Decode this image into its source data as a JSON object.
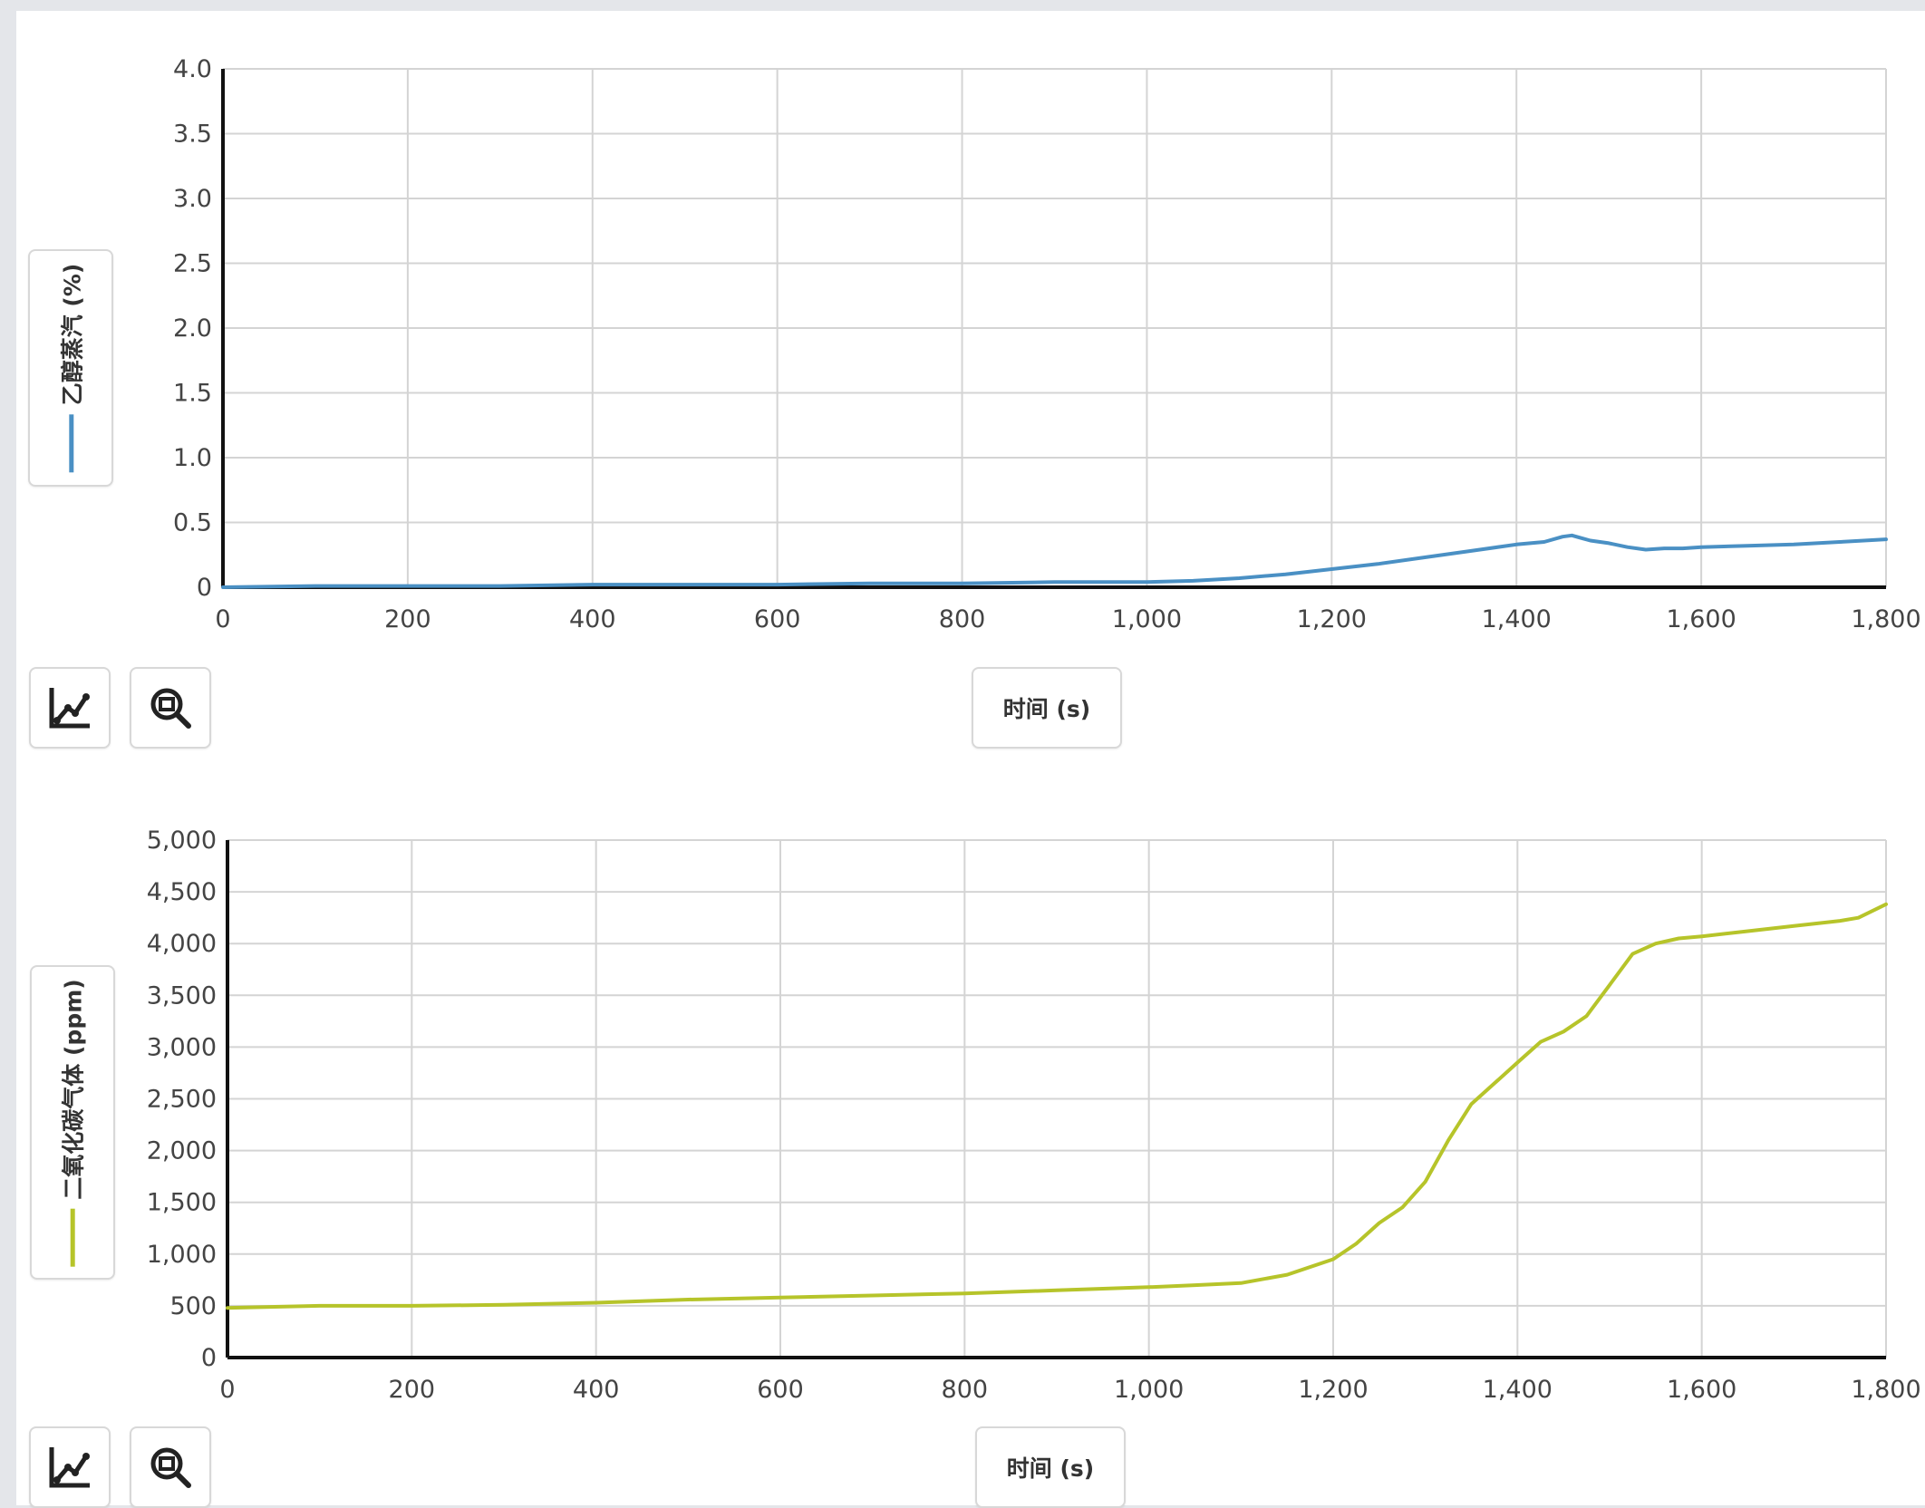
{
  "chart_data": [
    {
      "type": "line",
      "ylabel": "乙醇蒸汽 (%)",
      "xlabel": "时间 (s)",
      "xlim": [
        0,
        1800
      ],
      "ylim": [
        0,
        4.0
      ],
      "grid": true,
      "x_ticks": [
        "0",
        "200",
        "400",
        "600",
        "800",
        "1,000",
        "1,200",
        "1,400",
        "1,600",
        "1,800"
      ],
      "y_ticks": [
        "0",
        "0.5",
        "1.0",
        "1.5",
        "2.0",
        "2.5",
        "3.0",
        "3.5",
        "4.0"
      ],
      "color": "#4a90c4",
      "series": [
        {
          "x": [
            0,
            100,
            200,
            300,
            400,
            500,
            600,
            700,
            800,
            900,
            1000,
            1050,
            1100,
            1150,
            1200,
            1250,
            1300,
            1350,
            1400,
            1430,
            1450,
            1460,
            1470,
            1480,
            1500,
            1520,
            1540,
            1560,
            1580,
            1600,
            1650,
            1700,
            1750,
            1800
          ],
          "y": [
            0,
            0.01,
            0.01,
            0.01,
            0.02,
            0.02,
            0.02,
            0.03,
            0.03,
            0.04,
            0.04,
            0.05,
            0.07,
            0.1,
            0.14,
            0.18,
            0.23,
            0.28,
            0.33,
            0.35,
            0.39,
            0.4,
            0.38,
            0.36,
            0.34,
            0.31,
            0.29,
            0.3,
            0.3,
            0.31,
            0.32,
            0.33,
            0.35,
            0.37
          ]
        }
      ]
    },
    {
      "type": "line",
      "ylabel": "二氧化碳气体 (ppm)",
      "xlabel": "时间 (s)",
      "xlim": [
        0,
        1800
      ],
      "ylim": [
        0,
        5000
      ],
      "grid": true,
      "x_ticks": [
        "0",
        "200",
        "400",
        "600",
        "800",
        "1,000",
        "1,200",
        "1,400",
        "1,600",
        "1,800"
      ],
      "y_ticks": [
        "0",
        "500",
        "1,000",
        "1,500",
        "2,000",
        "2,500",
        "3,000",
        "3,500",
        "4,000",
        "4,500",
        "5,000"
      ],
      "color": "#b6c42a",
      "series": [
        {
          "x": [
            0,
            100,
            200,
            300,
            400,
            500,
            600,
            700,
            800,
            900,
            1000,
            1050,
            1100,
            1150,
            1200,
            1225,
            1250,
            1275,
            1300,
            1325,
            1350,
            1375,
            1400,
            1425,
            1450,
            1475,
            1500,
            1525,
            1550,
            1575,
            1600,
            1650,
            1700,
            1750,
            1770,
            1800
          ],
          "y": [
            480,
            500,
            500,
            510,
            530,
            560,
            580,
            600,
            620,
            650,
            680,
            700,
            720,
            800,
            950,
            1100,
            1300,
            1450,
            1700,
            2100,
            2450,
            2650,
            2850,
            3050,
            3150,
            3300,
            3600,
            3900,
            4000,
            4050,
            4070,
            4120,
            4170,
            4220,
            4250,
            4380
          ]
        }
      ]
    }
  ]
}
